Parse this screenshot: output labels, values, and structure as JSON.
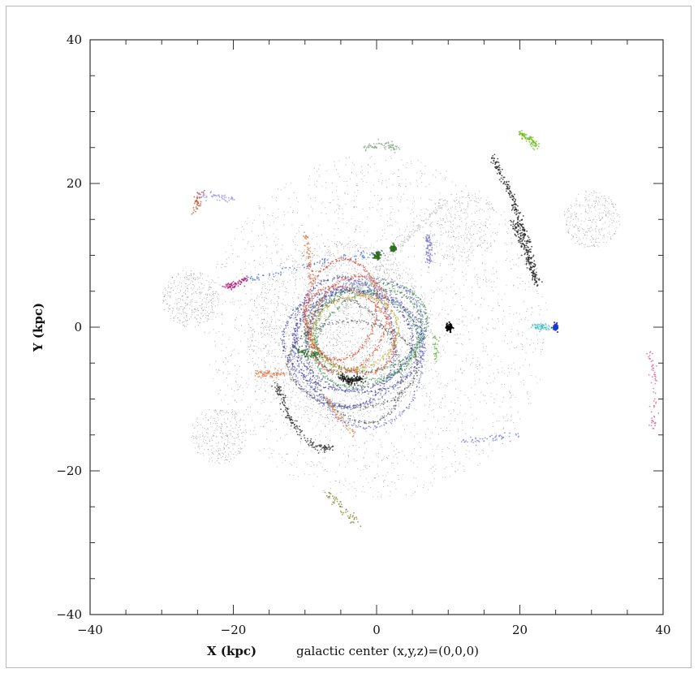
{
  "chart_data": {
    "type": "scatter",
    "title": "",
    "xlabel": "X (kpc)",
    "ylabel": "Y (kpc)",
    "caption": "galactic center (x,y,z)=(0,0,0)",
    "xlim": [
      -40,
      40
    ],
    "ylim": [
      -40,
      40
    ],
    "x_ticks": [
      -40,
      -20,
      0,
      20,
      40
    ],
    "y_ticks": [
      -40,
      -20,
      0,
      20,
      40
    ],
    "grid": false,
    "legend": "none",
    "background_cloud": {
      "description_units": "kpc",
      "color": "#6b6b6b",
      "clumps": [
        {
          "cx": -5,
          "cy": -1,
          "r": 13,
          "n": 1800
        },
        {
          "cx": 0,
          "cy": 0,
          "r": 24,
          "n": 2200
        },
        {
          "cx": -26,
          "cy": 4,
          "r": 4,
          "n": 350
        },
        {
          "cx": 30,
          "cy": 15,
          "r": 4,
          "n": 300
        },
        {
          "cx": -22,
          "cy": -15,
          "r": 4,
          "n": 300
        },
        {
          "cx": 12,
          "cy": 14,
          "r": 5,
          "n": 250
        }
      ]
    },
    "streams": [
      {
        "name": "",
        "color": "#222222",
        "points": [
          [
            16,
            24
          ],
          [
            19,
            18
          ],
          [
            21,
            12
          ],
          [
            22.5,
            6
          ]
        ],
        "n": 260
      },
      {
        "name": "",
        "color": "#222222",
        "points": [
          [
            19,
            15
          ],
          [
            21,
            10
          ],
          [
            22,
            7
          ]
        ],
        "n": 120
      },
      {
        "name": "",
        "color": "#333333",
        "points": [
          [
            -14,
            -8
          ],
          [
            -12,
            -13
          ],
          [
            -9,
            -16.5
          ],
          [
            -6,
            -17
          ]
        ],
        "n": 170
      },
      {
        "name": "",
        "color": "#111111",
        "points": [
          [
            -5,
            -7
          ],
          [
            -3.5,
            -7.5
          ],
          [
            -2,
            -7.2
          ]
        ],
        "n": 140
      },
      {
        "name": "",
        "color": "#c9c9c9",
        "points": [
          [
            -5,
            2
          ],
          [
            -1,
            7
          ],
          [
            4,
            12
          ],
          [
            9,
            17
          ]
        ],
        "n": 160
      },
      {
        "name": "",
        "color": "#8aaa8a",
        "points": [
          [
            -2,
            25
          ],
          [
            1,
            25.2
          ],
          [
            3,
            25
          ]
        ],
        "n": 70
      },
      {
        "name": "",
        "color": "#6fbf1f",
        "points": [
          [
            20,
            27
          ],
          [
            21.5,
            26
          ],
          [
            22.5,
            25
          ]
        ],
        "n": 90
      },
      {
        "name": "",
        "color": "#b0227a",
        "points": [
          [
            -21,
            5.6
          ],
          [
            -19,
            6.3
          ],
          [
            -18,
            6.6
          ]
        ],
        "n": 80
      },
      {
        "name": "",
        "color": "#4a6fe0",
        "points": [
          [
            -18,
            6.6
          ],
          [
            -12,
            8
          ],
          [
            -4,
            9.8
          ],
          [
            1,
            10.2
          ]
        ],
        "n": 90
      },
      {
        "name": "",
        "color": "#c5482a",
        "points": [
          [
            -25.5,
            16
          ],
          [
            -25,
            17.5
          ],
          [
            -24.5,
            19
          ]
        ],
        "n": 40
      },
      {
        "name": "",
        "color": "#9a9ae8",
        "points": [
          [
            -25,
            18.5
          ],
          [
            -22,
            18.2
          ],
          [
            -20,
            17.8
          ]
        ],
        "n": 55
      },
      {
        "name": "",
        "color": "#7a7ad8",
        "points": [
          [
            7,
            13
          ],
          [
            7.5,
            11
          ],
          [
            7.2,
            9
          ]
        ],
        "n": 75
      },
      {
        "name": "",
        "color": "#e07a4a",
        "points": [
          [
            -10,
            13
          ],
          [
            -9.5,
            10
          ],
          [
            -9,
            6
          ]
        ],
        "n": 70
      },
      {
        "name": "",
        "color": "#e07a4a",
        "points": [
          [
            -17,
            -6.5
          ],
          [
            -15,
            -6.6
          ],
          [
            -13,
            -6.5
          ]
        ],
        "n": 70
      },
      {
        "name": "",
        "color": "#e0884a",
        "points": [
          [
            -7,
            -10
          ],
          [
            -5,
            -13
          ],
          [
            -3,
            -15
          ]
        ],
        "n": 55
      },
      {
        "name": "",
        "color": "#8a8a3a",
        "points": [
          [
            -7,
            -23
          ],
          [
            -5,
            -25
          ],
          [
            -2.5,
            -27.5
          ]
        ],
        "n": 60
      },
      {
        "name": "",
        "color": "#7f86e6",
        "points": [
          [
            12,
            -16
          ],
          [
            16,
            -15.6
          ],
          [
            20,
            -15
          ]
        ],
        "n": 55
      },
      {
        "name": "",
        "color": "#d8649a",
        "points": [
          [
            38,
            -3
          ],
          [
            39,
            -8
          ],
          [
            38.5,
            -14
          ]
        ],
        "n": 60
      },
      {
        "name": "",
        "color": "#46c0c0",
        "points": [
          [
            22,
            0.2
          ],
          [
            23,
            0
          ],
          [
            24,
            0
          ]
        ],
        "n": 60
      },
      {
        "name": "",
        "color": "#2b6f2b",
        "points": [
          [
            -11,
            -3
          ],
          [
            -9.5,
            -4
          ],
          [
            -8,
            -3.5
          ]
        ],
        "n": 70
      },
      {
        "name": "",
        "color": "#5cae3a",
        "points": [
          [
            8,
            -1
          ],
          [
            8.3,
            -3
          ],
          [
            8.1,
            -5
          ]
        ],
        "n": 30
      }
    ],
    "loops": [
      {
        "name": "",
        "color": "#2a2aa0",
        "cx": -3,
        "cy": -2,
        "rx": 9,
        "ry": 7,
        "n": 3,
        "spread": 3
      },
      {
        "name": "",
        "color": "#1f7a3a",
        "cx": -2,
        "cy": -1,
        "rx": 8,
        "ry": 6,
        "n": 3,
        "spread": 3
      },
      {
        "name": "",
        "color": "#d23a22",
        "cx": -4,
        "cy": 1,
        "rx": 7,
        "ry": 5,
        "n": 3,
        "spread": 3
      },
      {
        "name": "",
        "color": "#5555c8",
        "cx": -1,
        "cy": -3,
        "rx": 10,
        "ry": 8,
        "n": 2,
        "spread": 4
      },
      {
        "name": "",
        "color": "#444444",
        "cx": -3,
        "cy": -4,
        "rx": 9,
        "ry": 6,
        "n": 2,
        "spread": 3
      },
      {
        "name": "",
        "color": "#b8a020",
        "cx": -2,
        "cy": 0,
        "rx": 6,
        "ry": 5,
        "n": 1,
        "spread": 2
      }
    ],
    "blobs": [
      {
        "name": "",
        "color": "#000000",
        "x": 10.2,
        "y": 0,
        "r": 0.55
      },
      {
        "name": "",
        "color": "#1a3ad0",
        "x": 25,
        "y": 0,
        "r": 0.45
      },
      {
        "name": "",
        "color": "#2f6f1f",
        "x": 0.1,
        "y": 10,
        "r": 0.5
      },
      {
        "name": "",
        "color": "#2f6f1f",
        "x": 2.3,
        "y": 11,
        "r": 0.45
      }
    ]
  }
}
